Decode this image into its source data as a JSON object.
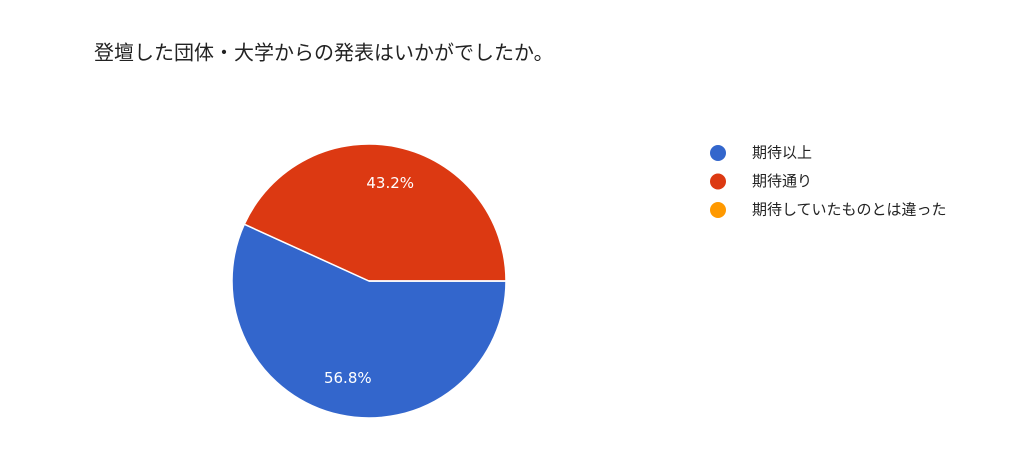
{
  "chart_data": {
    "type": "pie",
    "title": "登壇した団体・大学からの発表はいかがでしたか。",
    "categories": [
      "期待以上",
      "期待通り",
      "期待していたものとは違った"
    ],
    "values": [
      56.8,
      43.2,
      0
    ],
    "value_labels": [
      "56.8%",
      "43.2%",
      null
    ],
    "colors": [
      "#3366cc",
      "#dc3912",
      "#ff9900"
    ],
    "legend": "right"
  }
}
